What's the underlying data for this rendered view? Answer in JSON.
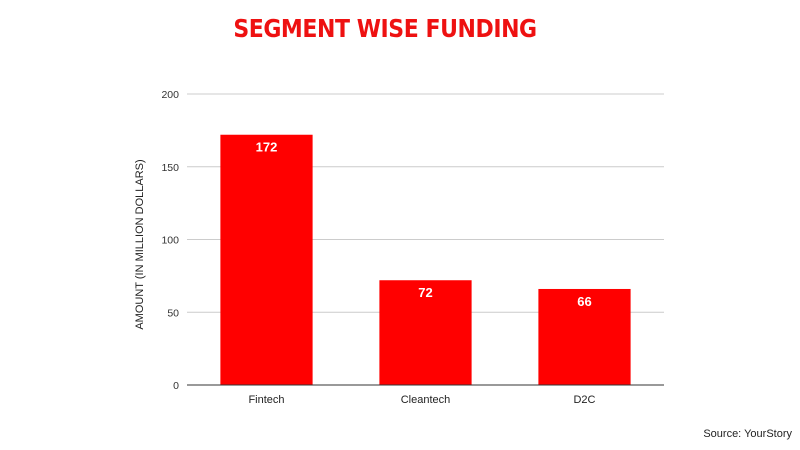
{
  "colors": {
    "bar": "#ff0000",
    "title": "#ee1111",
    "grid": "#cccccc",
    "axis": "#333333"
  },
  "source": "Source: YourStory",
  "chart_data": {
    "type": "bar",
    "title": "SEGMENT WISE FUNDING",
    "xlabel": "",
    "ylabel": "AMOUNT (IN MILLION DOLLARS)",
    "categories": [
      "Fintech",
      "Cleantech",
      "D2C"
    ],
    "values": [
      172,
      72,
      66
    ],
    "ylim": [
      0,
      200
    ],
    "yticks": [
      0,
      50,
      100,
      150,
      200
    ],
    "grid": true,
    "data_labels": true
  }
}
